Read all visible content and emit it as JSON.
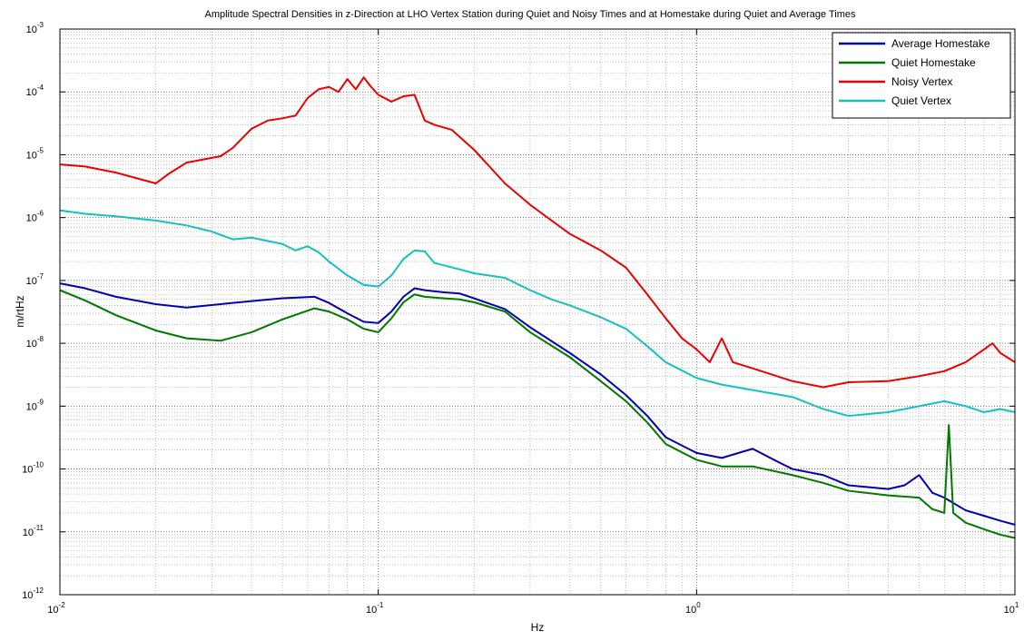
{
  "chart_data": {
    "type": "line",
    "title": "Amplitude Spectral Densities in z-Direction at LHO Vertex Station during Quiet and Noisy Times and at Homestake during Quiet and Average Times",
    "xlabel": "Hz",
    "ylabel": "m/rtHz",
    "x_scale": "log",
    "y_scale": "log",
    "xlim": [
      0.01,
      10
    ],
    "ylim": [
      1e-12,
      0.001
    ],
    "grid": "major and minor, dotted",
    "legend_position": "top-right",
    "x_ticks": [
      {
        "base": "10",
        "exp": "-2",
        "value": 0.01
      },
      {
        "base": "10",
        "exp": "-1",
        "value": 0.1
      },
      {
        "base": "10",
        "exp": "0",
        "value": 1
      },
      {
        "base": "10",
        "exp": "1",
        "value": 10
      }
    ],
    "y_ticks": [
      {
        "base": "10",
        "exp": "-12",
        "value": 1e-12
      },
      {
        "base": "10",
        "exp": "-11",
        "value": 1e-11
      },
      {
        "base": "10",
        "exp": "-10",
        "value": 1e-10
      },
      {
        "base": "10",
        "exp": "-9",
        "value": 1e-09
      },
      {
        "base": "10",
        "exp": "-8",
        "value": 1e-08
      },
      {
        "base": "10",
        "exp": "-7",
        "value": 1e-07
      },
      {
        "base": "10",
        "exp": "-6",
        "value": 1e-06
      },
      {
        "base": "10",
        "exp": "-5",
        "value": 1e-05
      },
      {
        "base": "10",
        "exp": "-4",
        "value": 0.0001
      },
      {
        "base": "10",
        "exp": "-3",
        "value": 0.001
      }
    ],
    "series": [
      {
        "name": "Average Homestake",
        "color": "#0000b4",
        "points": [
          [
            0.01,
            9e-08
          ],
          [
            0.012,
            7.5e-08
          ],
          [
            0.015,
            5.5e-08
          ],
          [
            0.02,
            4.2e-08
          ],
          [
            0.025,
            3.7e-08
          ],
          [
            0.032,
            4.2e-08
          ],
          [
            0.04,
            4.7e-08
          ],
          [
            0.05,
            5.2e-08
          ],
          [
            0.063,
            5.5e-08
          ],
          [
            0.07,
            4.4e-08
          ],
          [
            0.08,
            3e-08
          ],
          [
            0.09,
            2.2e-08
          ],
          [
            0.1,
            2.1e-08
          ],
          [
            0.11,
            3.2e-08
          ],
          [
            0.12,
            5.5e-08
          ],
          [
            0.13,
            7.5e-08
          ],
          [
            0.14,
            7e-08
          ],
          [
            0.16,
            6.5e-08
          ],
          [
            0.18,
            6.2e-08
          ],
          [
            0.2,
            5.2e-08
          ],
          [
            0.25,
            3.5e-08
          ],
          [
            0.3,
            1.8e-08
          ],
          [
            0.4,
            7e-09
          ],
          [
            0.5,
            3.2e-09
          ],
          [
            0.6,
            1.5e-09
          ],
          [
            0.7,
            7e-10
          ],
          [
            0.8,
            3.2e-10
          ],
          [
            1,
            1.8e-10
          ],
          [
            1.2,
            1.5e-10
          ],
          [
            1.5,
            2.1e-10
          ],
          [
            1.8,
            1.3e-10
          ],
          [
            2,
            1e-10
          ],
          [
            2.5,
            8e-11
          ],
          [
            3,
            5.5e-11
          ],
          [
            4,
            4.8e-11
          ],
          [
            4.5,
            5.5e-11
          ],
          [
            5,
            8e-11
          ],
          [
            5.5,
            4.2e-11
          ],
          [
            6,
            3.5e-11
          ],
          [
            7,
            2.2e-11
          ],
          [
            8,
            1.8e-11
          ],
          [
            9,
            1.5e-11
          ],
          [
            10,
            1.3e-11
          ]
        ]
      },
      {
        "name": "Quiet Homestake",
        "color": "#007800",
        "points": [
          [
            0.01,
            7e-08
          ],
          [
            0.012,
            4.8e-08
          ],
          [
            0.015,
            2.8e-08
          ],
          [
            0.02,
            1.6e-08
          ],
          [
            0.025,
            1.2e-08
          ],
          [
            0.032,
            1.1e-08
          ],
          [
            0.04,
            1.5e-08
          ],
          [
            0.05,
            2.4e-08
          ],
          [
            0.063,
            3.6e-08
          ],
          [
            0.07,
            3.2e-08
          ],
          [
            0.08,
            2.4e-08
          ],
          [
            0.09,
            1.7e-08
          ],
          [
            0.1,
            1.5e-08
          ],
          [
            0.11,
            2.5e-08
          ],
          [
            0.12,
            4.5e-08
          ],
          [
            0.13,
            6e-08
          ],
          [
            0.14,
            5.5e-08
          ],
          [
            0.16,
            5.2e-08
          ],
          [
            0.18,
            5e-08
          ],
          [
            0.2,
            4.5e-08
          ],
          [
            0.25,
            3.2e-08
          ],
          [
            0.3,
            1.5e-08
          ],
          [
            0.4,
            6e-09
          ],
          [
            0.5,
            2.5e-09
          ],
          [
            0.6,
            1.2e-09
          ],
          [
            0.7,
            5.5e-10
          ],
          [
            0.8,
            2.5e-10
          ],
          [
            1,
            1.4e-10
          ],
          [
            1.2,
            1.1e-10
          ],
          [
            1.5,
            1.1e-10
          ],
          [
            2,
            8e-11
          ],
          [
            2.5,
            6e-11
          ],
          [
            3,
            4.5e-11
          ],
          [
            4,
            3.8e-11
          ],
          [
            5,
            3.5e-11
          ],
          [
            5.5,
            2.3e-11
          ],
          [
            6,
            2e-11
          ],
          [
            6.2,
            5e-10
          ],
          [
            6.4,
            2e-11
          ],
          [
            7,
            1.4e-11
          ],
          [
            8,
            1.1e-11
          ],
          [
            9,
            9e-12
          ],
          [
            10,
            8e-12
          ]
        ]
      },
      {
        "name": "Noisy Vertex",
        "color": "#ee0000",
        "points": [
          [
            0.01,
            7e-06
          ],
          [
            0.012,
            6.5e-06
          ],
          [
            0.015,
            5.2e-06
          ],
          [
            0.02,
            3.5e-06
          ],
          [
            0.022,
            5e-06
          ],
          [
            0.025,
            7.5e-06
          ],
          [
            0.032,
            9.5e-06
          ],
          [
            0.035,
            1.3e-05
          ],
          [
            0.04,
            2.6e-05
          ],
          [
            0.045,
            3.5e-05
          ],
          [
            0.05,
            3.8e-05
          ],
          [
            0.055,
            4.2e-05
          ],
          [
            0.06,
            8e-05
          ],
          [
            0.065,
            0.00011
          ],
          [
            0.07,
            0.00012
          ],
          [
            0.075,
            0.0001
          ],
          [
            0.08,
            0.00016
          ],
          [
            0.085,
            0.00011
          ],
          [
            0.09,
            0.00017
          ],
          [
            0.095,
            0.00012
          ],
          [
            0.1,
            9e-05
          ],
          [
            0.11,
            7e-05
          ],
          [
            0.12,
            8.5e-05
          ],
          [
            0.13,
            9e-05
          ],
          [
            0.14,
            3.5e-05
          ],
          [
            0.15,
            3e-05
          ],
          [
            0.17,
            2.5e-05
          ],
          [
            0.2,
            1.2e-05
          ],
          [
            0.25,
            3.5e-06
          ],
          [
            0.3,
            1.6e-06
          ],
          [
            0.35,
            9e-07
          ],
          [
            0.4,
            5.5e-07
          ],
          [
            0.5,
            3e-07
          ],
          [
            0.6,
            1.6e-07
          ],
          [
            0.7,
            6e-08
          ],
          [
            0.8,
            2.5e-08
          ],
          [
            0.9,
            1.2e-08
          ],
          [
            1,
            8e-09
          ],
          [
            1.1,
            5e-09
          ],
          [
            1.2,
            1.2e-08
          ],
          [
            1.3,
            5e-09
          ],
          [
            1.5,
            4e-09
          ],
          [
            2,
            2.5e-09
          ],
          [
            2.5,
            2e-09
          ],
          [
            3,
            2.4e-09
          ],
          [
            4,
            2.5e-09
          ],
          [
            5,
            3e-09
          ],
          [
            6,
            3.6e-09
          ],
          [
            7,
            5e-09
          ],
          [
            8,
            8e-09
          ],
          [
            8.5,
            1e-08
          ],
          [
            9,
            7e-09
          ],
          [
            10,
            5e-09
          ]
        ]
      },
      {
        "name": "Quiet Vertex",
        "color": "#14c0c0",
        "points": [
          [
            0.01,
            1.3e-06
          ],
          [
            0.012,
            1.15e-06
          ],
          [
            0.015,
            1.05e-06
          ],
          [
            0.02,
            9e-07
          ],
          [
            0.025,
            7.5e-07
          ],
          [
            0.03,
            6e-07
          ],
          [
            0.035,
            4.5e-07
          ],
          [
            0.04,
            4.8e-07
          ],
          [
            0.05,
            3.8e-07
          ],
          [
            0.055,
            3e-07
          ],
          [
            0.06,
            3.5e-07
          ],
          [
            0.065,
            2.8e-07
          ],
          [
            0.07,
            2e-07
          ],
          [
            0.08,
            1.2e-07
          ],
          [
            0.09,
            8.5e-08
          ],
          [
            0.1,
            8e-08
          ],
          [
            0.11,
            1.2e-07
          ],
          [
            0.12,
            2.2e-07
          ],
          [
            0.13,
            3e-07
          ],
          [
            0.14,
            2.9e-07
          ],
          [
            0.15,
            1.9e-07
          ],
          [
            0.18,
            1.5e-07
          ],
          [
            0.2,
            1.3e-07
          ],
          [
            0.25,
            1.1e-07
          ],
          [
            0.3,
            7e-08
          ],
          [
            0.35,
            5e-08
          ],
          [
            0.4,
            4e-08
          ],
          [
            0.5,
            2.6e-08
          ],
          [
            0.6,
            1.7e-08
          ],
          [
            0.7,
            9e-09
          ],
          [
            0.8,
            5e-09
          ],
          [
            1,
            2.8e-09
          ],
          [
            1.2,
            2.2e-09
          ],
          [
            1.5,
            1.8e-09
          ],
          [
            2,
            1.4e-09
          ],
          [
            2.5,
            9e-10
          ],
          [
            3,
            7e-10
          ],
          [
            4,
            8e-10
          ],
          [
            5,
            1e-09
          ],
          [
            6,
            1.2e-09
          ],
          [
            7,
            1e-09
          ],
          [
            8,
            8e-10
          ],
          [
            9,
            9e-10
          ],
          [
            10,
            8e-10
          ]
        ]
      }
    ]
  }
}
